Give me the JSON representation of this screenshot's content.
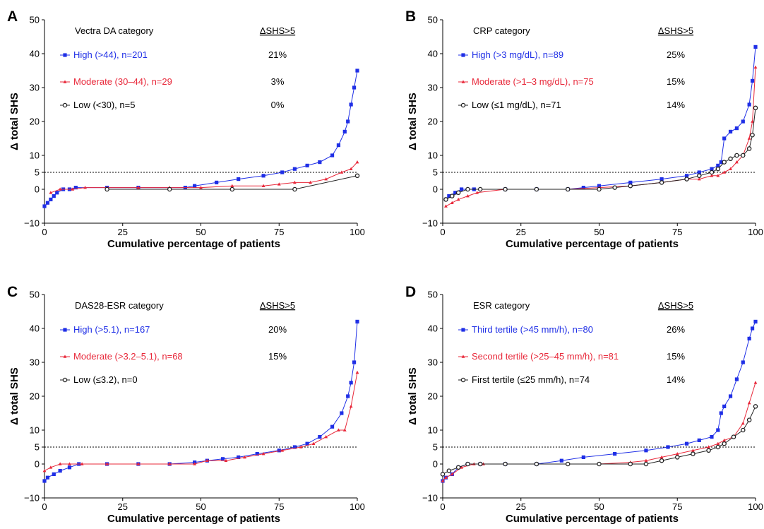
{
  "chart_data": [
    {
      "type": "line",
      "panel": "A",
      "ylabel": "Δ total SHS",
      "xlabel": "Cumulative percentage of patients",
      "xlim": [
        0,
        100
      ],
      "ylim": [
        -10,
        50
      ],
      "xticks": [
        "0",
        "25",
        "50",
        "75",
        "100"
      ],
      "yticks": [
        "−10",
        "0",
        "5",
        "10",
        "20",
        "30",
        "40",
        "50"
      ],
      "threshold": 5,
      "legend_title": "Vectra DA category",
      "pct_header": "ΔSHS>5",
      "series": [
        {
          "name": "High (>44), n=201",
          "pct": "21%",
          "color": "#1f2fe6",
          "marker": "square",
          "x": [
            0,
            1,
            2,
            3,
            4,
            6,
            8,
            10,
            20,
            30,
            45,
            48,
            55,
            62,
            70,
            76,
            80,
            84,
            88,
            92,
            94,
            96,
            97,
            98,
            99,
            100
          ],
          "y": [
            -5,
            -4,
            -3,
            -2,
            -1,
            0,
            0,
            0.5,
            0.5,
            0.5,
            0.5,
            1,
            2,
            3,
            4,
            5,
            6,
            7,
            8,
            10,
            13,
            17,
            20,
            25,
            30,
            35
          ]
        },
        {
          "name": "Moderate (30–44), n=29",
          "pct": "3%",
          "color": "#e8283a",
          "marker": "triangle",
          "x": [
            2,
            5,
            9,
            13,
            20,
            30,
            40,
            50,
            60,
            70,
            75,
            80,
            85,
            90,
            95,
            98,
            100
          ],
          "y": [
            -1,
            0,
            0,
            0.5,
            0.5,
            0.5,
            0.5,
            0.5,
            1,
            1,
            1.5,
            2,
            2,
            3,
            5,
            6,
            8
          ]
        },
        {
          "name": "Low (<30), n=5",
          "pct": "0%",
          "color": "#222222",
          "marker": "circle",
          "x": [
            20,
            40,
            60,
            80,
            100
          ],
          "y": [
            0,
            0,
            0,
            0,
            4
          ]
        }
      ]
    },
    {
      "type": "line",
      "panel": "B",
      "ylabel": "Δ total SHS",
      "xlabel": "Cumulative percentage of patients",
      "xlim": [
        0,
        100
      ],
      "ylim": [
        -10,
        50
      ],
      "xticks": [
        "0",
        "25",
        "50",
        "75",
        "100"
      ],
      "yticks": [
        "−10",
        "0",
        "5",
        "10",
        "20",
        "30",
        "40",
        "50"
      ],
      "threshold": 5,
      "legend_title": "CRP category",
      "pct_header": "ΔSHS>5",
      "series": [
        {
          "name": "High (>3 mg/dL), n=89",
          "pct": "25%",
          "color": "#1f2fe6",
          "marker": "square",
          "x": [
            1,
            2,
            4,
            6,
            10,
            20,
            30,
            40,
            45,
            50,
            60,
            70,
            78,
            82,
            86,
            88,
            89,
            90,
            92,
            94,
            96,
            98,
            99,
            100
          ],
          "y": [
            -3,
            -2,
            -1,
            0,
            0,
            0,
            0,
            0,
            0.5,
            1,
            2,
            3,
            4,
            5,
            6,
            7,
            8,
            15,
            17,
            18,
            20,
            25,
            32,
            42
          ]
        },
        {
          "name": "Moderate (>1–3 mg/dL), n=75",
          "pct": "15%",
          "color": "#e8283a",
          "marker": "triangle",
          "x": [
            1,
            3,
            5,
            8,
            11,
            20,
            30,
            40,
            50,
            60,
            70,
            78,
            82,
            86,
            88,
            90,
            92,
            94,
            96,
            98,
            99,
            100
          ],
          "y": [
            -5,
            -4,
            -3,
            -2,
            -1,
            0,
            0,
            0,
            0.5,
            1,
            2,
            3,
            3,
            4,
            4,
            5,
            6,
            8,
            10,
            15,
            20,
            36
          ]
        },
        {
          "name": "Low (≤1 mg/dL), n=71",
          "pct": "14%",
          "color": "#222222",
          "marker": "circle",
          "x": [
            1,
            3,
            5,
            8,
            12,
            20,
            30,
            40,
            50,
            55,
            60,
            70,
            78,
            82,
            86,
            88,
            90,
            92,
            94,
            96,
            98,
            99,
            100
          ],
          "y": [
            -3,
            -2,
            -1,
            0,
            0,
            0,
            0,
            0,
            0,
            0.5,
            1,
            2,
            3,
            4,
            5,
            6,
            8,
            9,
            10,
            10,
            12,
            16,
            24
          ]
        }
      ]
    },
    {
      "type": "line",
      "panel": "C",
      "ylabel": "Δ total SHS",
      "xlabel": "Cumulative percentage of patients",
      "xlim": [
        0,
        100
      ],
      "ylim": [
        -10,
        50
      ],
      "xticks": [
        "0",
        "25",
        "50",
        "75",
        "100"
      ],
      "yticks": [
        "−10",
        "0",
        "5",
        "10",
        "20",
        "30",
        "40",
        "50"
      ],
      "threshold": 5,
      "legend_title": "DAS28-ESR category",
      "pct_header": "ΔSHS>5",
      "series": [
        {
          "name": "High (>5.1), n=167",
          "pct": "20%",
          "color": "#1f2fe6",
          "marker": "square",
          "x": [
            0,
            1,
            3,
            5,
            8,
            11,
            20,
            30,
            40,
            48,
            52,
            57,
            62,
            68,
            75,
            80,
            84,
            88,
            92,
            95,
            97,
            98,
            99,
            100
          ],
          "y": [
            -5,
            -4,
            -3,
            -2,
            -1,
            0,
            0,
            0,
            0,
            0.5,
            1,
            1.5,
            2,
            3,
            4,
            5,
            6,
            8,
            11,
            15,
            20,
            24,
            30,
            42
          ]
        },
        {
          "name": "Moderate (>3.2–5.1), n=68",
          "pct": "15%",
          "color": "#e8283a",
          "marker": "triangle",
          "x": [
            0,
            2,
            5,
            8,
            12,
            20,
            30,
            40,
            48,
            52,
            58,
            64,
            70,
            76,
            82,
            86,
            90,
            94,
            96,
            98,
            100
          ],
          "y": [
            -2,
            -1,
            0,
            0,
            0,
            0,
            0,
            0,
            0,
            1,
            1,
            2,
            3,
            4,
            5,
            6,
            8,
            10,
            10,
            17,
            27
          ]
        },
        {
          "name": "Low (≤3.2), n=0",
          "pct": "",
          "color": "#222222",
          "marker": "circle",
          "x": [],
          "y": []
        }
      ]
    },
    {
      "type": "line",
      "panel": "D",
      "ylabel": "Δ total SHS",
      "xlabel": "Cumulative percentage of patients",
      "xlim": [
        0,
        100
      ],
      "ylim": [
        -10,
        50
      ],
      "xticks": [
        "0",
        "25",
        "50",
        "75",
        "100"
      ],
      "yticks": [
        "−10",
        "0",
        "5",
        "10",
        "20",
        "30",
        "40",
        "50"
      ],
      "threshold": 5,
      "legend_title": "ESR category",
      "pct_header": "ΔSHS>5",
      "series": [
        {
          "name": "Third tertile (>45 mm/h), n=80",
          "pct": "26%",
          "color": "#1f2fe6",
          "marker": "square",
          "x": [
            0,
            1,
            3,
            5,
            8,
            12,
            20,
            30,
            38,
            45,
            55,
            65,
            72,
            78,
            82,
            86,
            88,
            89,
            90,
            92,
            94,
            96,
            98,
            99,
            100
          ],
          "y": [
            -5,
            -4,
            -3,
            -1,
            0,
            0,
            0,
            0,
            1,
            2,
            3,
            4,
            5,
            6,
            7,
            8,
            10,
            15,
            17,
            20,
            25,
            30,
            37,
            40,
            42
          ]
        },
        {
          "name": "Second tertile (>25–45 mm/h), n=81",
          "pct": "15%",
          "color": "#e8283a",
          "marker": "triangle",
          "x": [
            0,
            1,
            3,
            6,
            10,
            13,
            20,
            30,
            40,
            50,
            60,
            65,
            70,
            75,
            80,
            85,
            88,
            90,
            93,
            96,
            98,
            100
          ],
          "y": [
            -5,
            -4,
            -3,
            -1,
            0,
            0,
            0,
            0,
            0,
            0,
            0.5,
            1,
            2,
            3,
            4,
            5,
            6,
            7,
            8,
            12,
            18,
            24
          ]
        },
        {
          "name": "First tertile (≤25 mm/h), n=74",
          "pct": "14%",
          "color": "#222222",
          "marker": "circle",
          "x": [
            0,
            2,
            5,
            8,
            12,
            20,
            30,
            40,
            50,
            60,
            65,
            70,
            75,
            80,
            85,
            88,
            90,
            93,
            96,
            98,
            100
          ],
          "y": [
            -3,
            -2,
            -1,
            0,
            0,
            0,
            0,
            0,
            0,
            0,
            0,
            1,
            2,
            3,
            4,
            5,
            6,
            8,
            10,
            13,
            17
          ]
        }
      ]
    }
  ]
}
